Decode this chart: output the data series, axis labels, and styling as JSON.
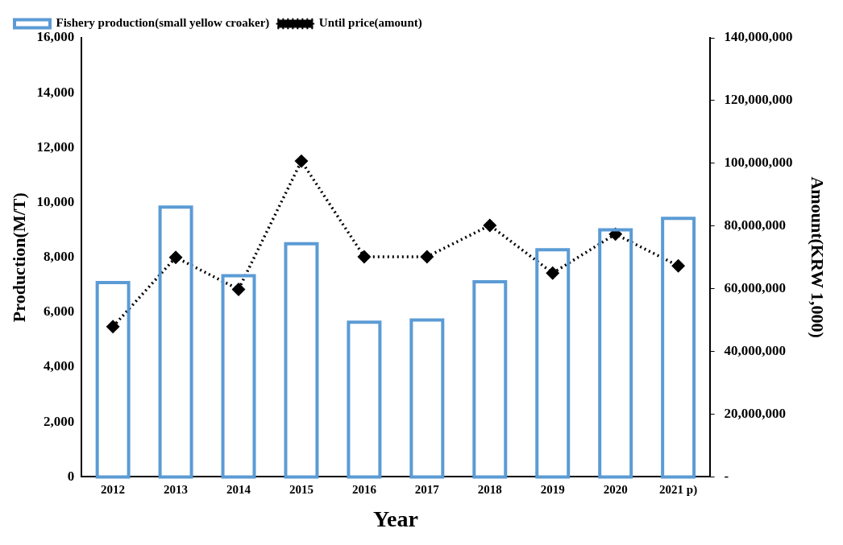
{
  "chart_data": {
    "type": "bar",
    "xlabel": "Year",
    "ylabel": "Production(M/T)",
    "y2label": "Amount(KRW 1,000)",
    "categories": [
      "2012",
      "2013",
      "2014",
      "2015",
      "2016",
      "2017",
      "2018",
      "2019",
      "2020",
      "2021 p)"
    ],
    "series": [
      {
        "name": "Fishery production(small yellow croaker)",
        "type": "bar",
        "color": "#5b9bd5",
        "values": [
          7080,
          9830,
          7330,
          8500,
          5640,
          5720,
          7110,
          8280,
          9000,
          9420
        ]
      },
      {
        "name": "Until price(amount)",
        "type": "line",
        "axis": "y2",
        "color": "#000000",
        "marker": "diamond",
        "line_style": "dotted",
        "values": [
          47900000,
          70000000,
          59800000,
          100700000,
          70200000,
          70200000,
          80200000,
          65000000,
          77400000,
          67300000
        ]
      }
    ],
    "ylim": [
      0,
      16000
    ],
    "yticks": [
      {
        "value": 0,
        "label": "0"
      },
      {
        "value": 2000,
        "label": "2,000"
      },
      {
        "value": 4000,
        "label": "4,000"
      },
      {
        "value": 6000,
        "label": "6,000"
      },
      {
        "value": 8000,
        "label": "8,000"
      },
      {
        "value": 10000,
        "label": "10,000"
      },
      {
        "value": 12000,
        "label": "12,000"
      },
      {
        "value": 14000,
        "label": "14,000"
      },
      {
        "value": 16000,
        "label": "16,000"
      }
    ],
    "y2lim": [
      0,
      140000000
    ],
    "y2ticks": [
      {
        "value": 0,
        "label": "-"
      },
      {
        "value": 20000000,
        "label": "20,000,000"
      },
      {
        "value": 40000000,
        "label": "40,000,000"
      },
      {
        "value": 60000000,
        "label": "60,000,000"
      },
      {
        "value": 80000000,
        "label": "80,000,000"
      },
      {
        "value": 100000000,
        "label": "100,000,000"
      },
      {
        "value": 120000000,
        "label": "120,000,000"
      },
      {
        "value": 140000000,
        "label": "140,000,000"
      }
    ],
    "legend": "top left",
    "grid": false
  }
}
